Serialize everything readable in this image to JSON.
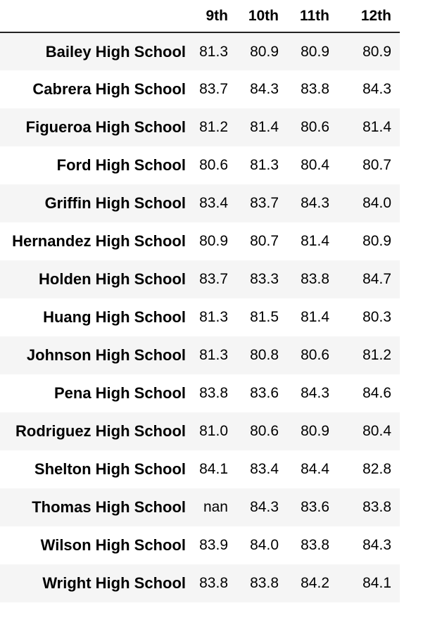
{
  "table": {
    "columns": [
      "9th",
      "10th",
      "11th",
      "12th"
    ],
    "rows": [
      {
        "school": "Bailey High School",
        "values": [
          "81.3",
          "80.9",
          "80.9",
          "80.9"
        ]
      },
      {
        "school": "Cabrera High School",
        "values": [
          "83.7",
          "84.3",
          "83.8",
          "84.3"
        ]
      },
      {
        "school": "Figueroa High School",
        "values": [
          "81.2",
          "81.4",
          "80.6",
          "81.4"
        ]
      },
      {
        "school": "Ford High School",
        "values": [
          "80.6",
          "81.3",
          "80.4",
          "80.7"
        ]
      },
      {
        "school": "Griffin High School",
        "values": [
          "83.4",
          "83.7",
          "84.3",
          "84.0"
        ]
      },
      {
        "school": "Hernandez High School",
        "values": [
          "80.9",
          "80.7",
          "81.4",
          "80.9"
        ]
      },
      {
        "school": "Holden High School",
        "values": [
          "83.7",
          "83.3",
          "83.8",
          "84.7"
        ]
      },
      {
        "school": "Huang High School",
        "values": [
          "81.3",
          "81.5",
          "81.4",
          "80.3"
        ]
      },
      {
        "school": "Johnson High School",
        "values": [
          "81.3",
          "80.8",
          "80.6",
          "81.2"
        ]
      },
      {
        "school": "Pena High School",
        "values": [
          "83.8",
          "83.6",
          "84.3",
          "84.6"
        ]
      },
      {
        "school": "Rodriguez High School",
        "values": [
          "81.0",
          "80.6",
          "80.9",
          "80.4"
        ]
      },
      {
        "school": "Shelton High School",
        "values": [
          "84.1",
          "83.4",
          "84.4",
          "82.8"
        ]
      },
      {
        "school": "Thomas High School",
        "values": [
          "nan",
          "84.3",
          "83.6",
          "83.8"
        ]
      },
      {
        "school": "Wilson High School",
        "values": [
          "83.9",
          "84.0",
          "83.8",
          "84.3"
        ]
      },
      {
        "school": "Wright High School",
        "values": [
          "83.8",
          "83.8",
          "84.2",
          "84.1"
        ]
      }
    ]
  },
  "colors": {
    "odd_row_background": "#f5f5f5",
    "even_row_background": "#ffffff",
    "header_rule": "#222222"
  }
}
